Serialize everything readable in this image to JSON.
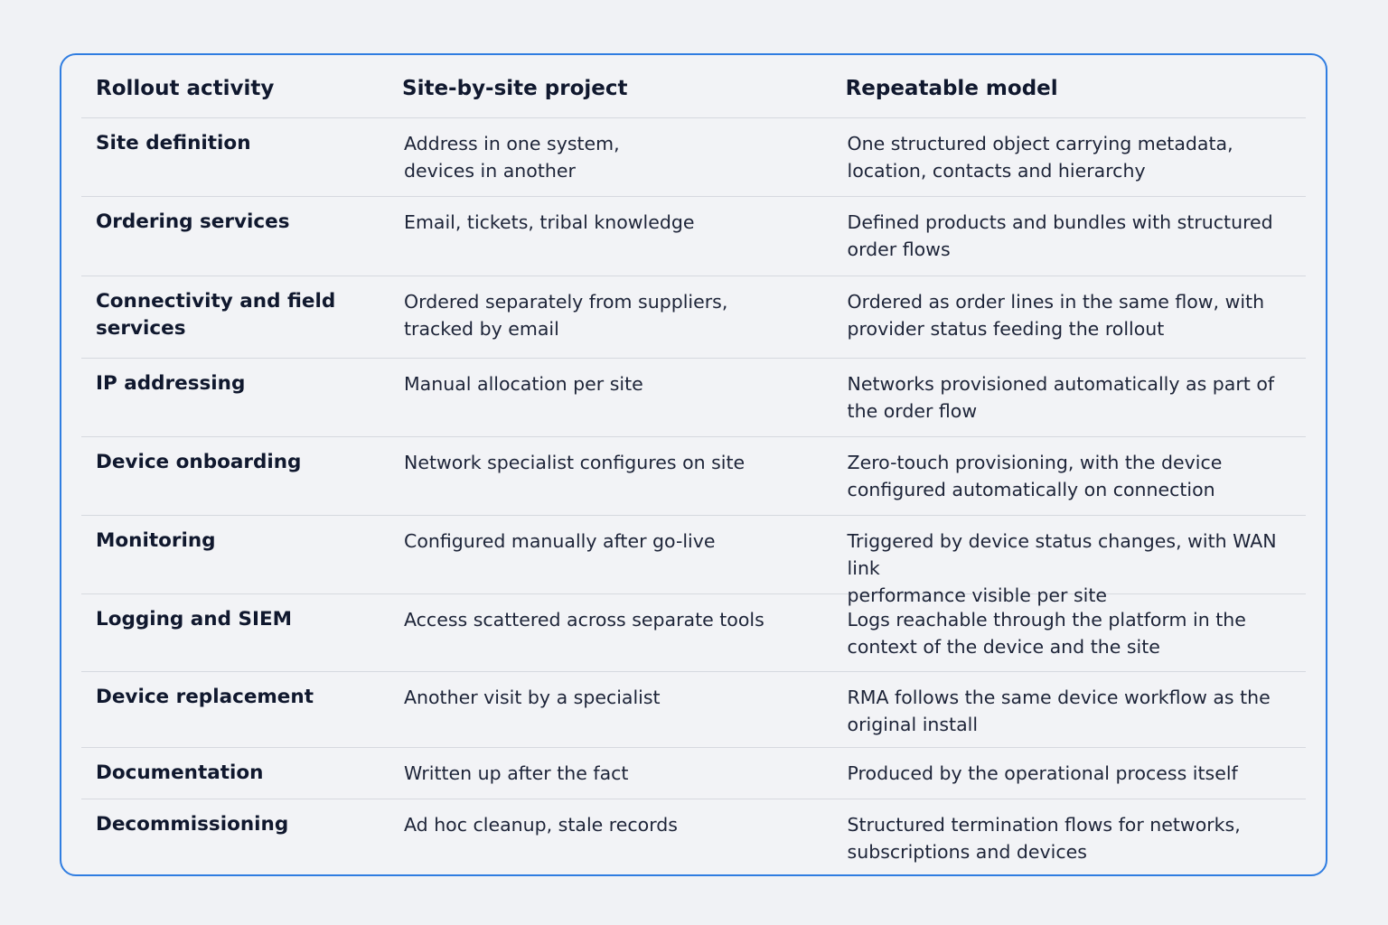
{
  "table": {
    "headers": [
      "Rollout activity",
      "Site-by-site project",
      "Repeatable model"
    ],
    "rows": [
      {
        "activity": "Site definition",
        "site_by_site": "Address in one system,\ndevices in another",
        "repeatable": "One structured object carrying metadata,\nlocation, contacts and hierarchy"
      },
      {
        "activity": "Ordering services",
        "site_by_site": "Email, tickets, tribal knowledge",
        "repeatable": "Defined products and bundles with structured\norder flows"
      },
      {
        "activity": "Connectivity and field\nservices",
        "site_by_site": "Ordered separately from suppliers,\ntracked by email",
        "repeatable": "Ordered as order lines in the same flow, with\nprovider status feeding the rollout"
      },
      {
        "activity": "IP addressing",
        "site_by_site": "Manual allocation per site",
        "repeatable": "Networks provisioned automatically as part of\nthe order flow"
      },
      {
        "activity": "Device onboarding",
        "site_by_site": "Network specialist configures on site",
        "repeatable": "Zero-touch provisioning, with the device\nconfigured automatically on connection"
      },
      {
        "activity": "Monitoring",
        "site_by_site": "Configured manually after go-live",
        "repeatable": "Triggered by device status changes, with WAN link\nperformance visible per site"
      },
      {
        "activity": "Logging and SIEM",
        "site_by_site": "Access scattered across separate tools",
        "repeatable": "Logs reachable through the platform in the\ncontext of the device and the site"
      },
      {
        "activity": "Device replacement",
        "site_by_site": "Another visit by a specialist",
        "repeatable": "RMA follows the same device workflow as the\noriginal install"
      },
      {
        "activity": "Documentation",
        "site_by_site": "Written up after the fact",
        "repeatable": "Produced by the operational process itself"
      },
      {
        "activity": "Decommissioning",
        "site_by_site": "Ad hoc cleanup, stale records",
        "repeatable": "Structured termination flows for networks,\nsubscriptions and devices"
      }
    ]
  },
  "colors": {
    "border": "#2f7de1",
    "background": "#f0f2f5",
    "text": "#141c33",
    "divider": "#d6d9df"
  }
}
